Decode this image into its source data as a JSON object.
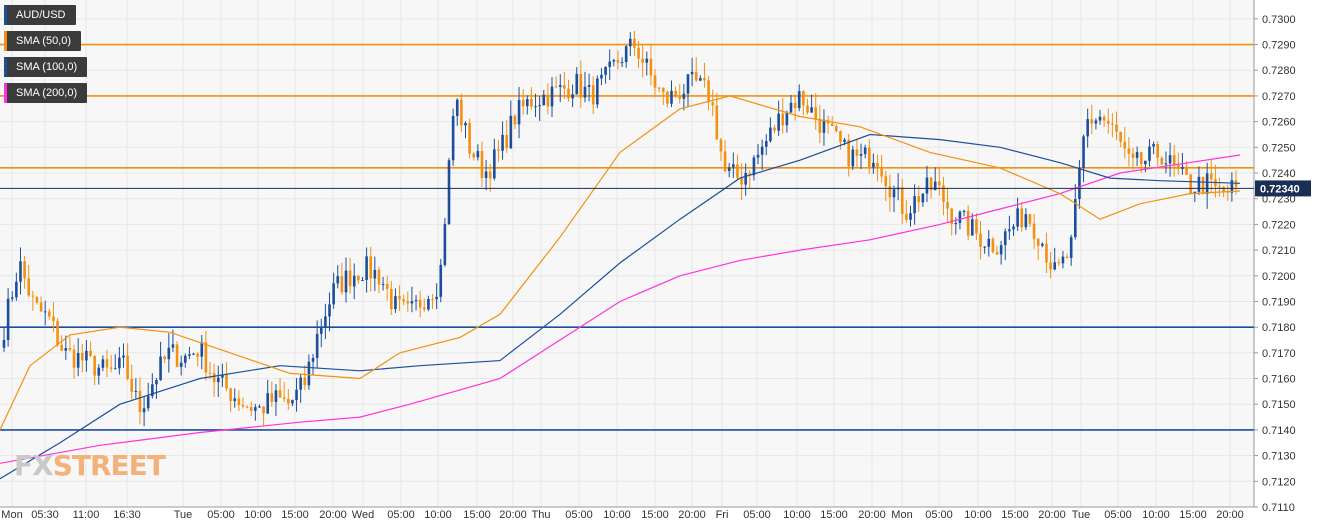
{
  "legend": [
    {
      "label": "AUD/USD",
      "color": "#1b4f9c"
    },
    {
      "label": "SMA (50,0)",
      "color": "#f29111"
    },
    {
      "label": "SMA (100,0)",
      "color": "#1b4f9c"
    },
    {
      "label": "SMA (200,0)",
      "color": "#ff33dd"
    }
  ],
  "watermark": {
    "part1": "FX",
    "part2": "STREET"
  },
  "chart_data": {
    "type": "candlestick",
    "title": "AUD/USD",
    "ylim": [
      0.711,
      0.7305
    ],
    "y_ticks": [
      "0.7300",
      "0.7290",
      "0.7280",
      "0.7270",
      "0.7260",
      "0.7250",
      "0.7240",
      "0.7230",
      "0.7220",
      "0.7210",
      "0.7200",
      "0.7190",
      "0.7180",
      "0.7170",
      "0.7160",
      "0.7150",
      "0.7140",
      "0.7130",
      "0.7120",
      "0.7110"
    ],
    "x_labels": [
      "Mon",
      "05:30",
      "11:00",
      "16:30",
      "Tue",
      "05:00",
      "10:00",
      "15:00",
      "20:00",
      "Wed",
      "05:00",
      "10:00",
      "15:00",
      "20:00",
      "Thu",
      "05:00",
      "10:00",
      "15:00",
      "20:00",
      "Fri",
      "05:00",
      "10:00",
      "15:00",
      "20:00",
      "Mon",
      "05:00",
      "10:00",
      "15:00",
      "20:00",
      "Tue",
      "05:00",
      "10:00",
      "15:00",
      "20:00"
    ],
    "last_price": "0.72340",
    "horizontal_levels": [
      {
        "value": 0.729,
        "color": "#f29111"
      },
      {
        "value": 0.727,
        "color": "#f29111"
      },
      {
        "value": 0.7242,
        "color": "#f29111"
      },
      {
        "value": 0.718,
        "color": "#1b4f9c"
      },
      {
        "value": 0.714,
        "color": "#1b4f9c"
      }
    ],
    "colors": {
      "up": "#1b4f9c",
      "down": "#f29111",
      "sma50": "#f29111",
      "sma100": "#1b4f9c",
      "sma200": "#ff33dd"
    },
    "anchors": [
      0.718,
      0.7205,
      0.7188,
      0.7183,
      0.717,
      0.7168,
      0.7165,
      0.7162,
      0.7165,
      0.7148,
      0.716,
      0.717,
      0.7168,
      0.7172,
      0.716,
      0.7155,
      0.715,
      0.7148,
      0.7152,
      0.715,
      0.7158,
      0.718,
      0.7195,
      0.72,
      0.7203,
      0.72,
      0.7188,
      0.7185,
      0.7192,
      0.7198,
      0.727,
      0.725,
      0.724,
      0.7248,
      0.7262,
      0.7268,
      0.727,
      0.7272,
      0.7275,
      0.727,
      0.7276,
      0.7285,
      0.729,
      0.7278,
      0.7268,
      0.7272,
      0.7275,
      0.727,
      0.724,
      0.7238,
      0.7245,
      0.7255,
      0.7265,
      0.727,
      0.7262,
      0.7255,
      0.7248,
      0.7245,
      0.7248,
      0.7235,
      0.7225,
      0.7232,
      0.7235,
      0.7225,
      0.722,
      0.7215,
      0.7212,
      0.7218,
      0.7225,
      0.7215,
      0.72,
      0.721,
      0.726,
      0.7262,
      0.7255,
      0.7242,
      0.7245,
      0.7248,
      0.724,
      0.7235,
      0.7236,
      0.7232,
      0.7234
    ],
    "sma50_points": [
      [
        0,
        0.714
      ],
      [
        30,
        0.7165
      ],
      [
        70,
        0.7177
      ],
      [
        120,
        0.718
      ],
      [
        170,
        0.7178
      ],
      [
        230,
        0.717
      ],
      [
        290,
        0.7162
      ],
      [
        360,
        0.716
      ],
      [
        400,
        0.717
      ],
      [
        460,
        0.7176
      ],
      [
        500,
        0.7185
      ],
      [
        560,
        0.7215
      ],
      [
        620,
        0.7248
      ],
      [
        680,
        0.7265
      ],
      [
        730,
        0.727
      ],
      [
        800,
        0.7262
      ],
      [
        860,
        0.7258
      ],
      [
        930,
        0.7248
      ],
      [
        1000,
        0.7242
      ],
      [
        1060,
        0.7232
      ],
      [
        1100,
        0.7222
      ],
      [
        1140,
        0.7228
      ],
      [
        1190,
        0.7232
      ],
      [
        1240,
        0.7233
      ]
    ],
    "sma100_points": [
      [
        0,
        0.7121
      ],
      [
        60,
        0.7135
      ],
      [
        120,
        0.715
      ],
      [
        200,
        0.716
      ],
      [
        280,
        0.7165
      ],
      [
        360,
        0.7163
      ],
      [
        420,
        0.7165
      ],
      [
        500,
        0.7167
      ],
      [
        560,
        0.7185
      ],
      [
        620,
        0.7205
      ],
      [
        680,
        0.7222
      ],
      [
        740,
        0.7238
      ],
      [
        800,
        0.7245
      ],
      [
        870,
        0.7255
      ],
      [
        940,
        0.7253
      ],
      [
        1000,
        0.725
      ],
      [
        1060,
        0.7244
      ],
      [
        1110,
        0.7238
      ],
      [
        1160,
        0.7237
      ],
      [
        1240,
        0.7236
      ]
    ],
    "sma200_points": [
      [
        0,
        0.7127
      ],
      [
        100,
        0.7134
      ],
      [
        200,
        0.7139
      ],
      [
        300,
        0.7143
      ],
      [
        360,
        0.7145
      ],
      [
        410,
        0.715
      ],
      [
        500,
        0.716
      ],
      [
        560,
        0.7175
      ],
      [
        620,
        0.719
      ],
      [
        680,
        0.72
      ],
      [
        740,
        0.7206
      ],
      [
        800,
        0.721
      ],
      [
        870,
        0.7214
      ],
      [
        940,
        0.722
      ],
      [
        1000,
        0.7226
      ],
      [
        1060,
        0.7232
      ],
      [
        1120,
        0.724
      ],
      [
        1240,
        0.7247
      ]
    ]
  }
}
